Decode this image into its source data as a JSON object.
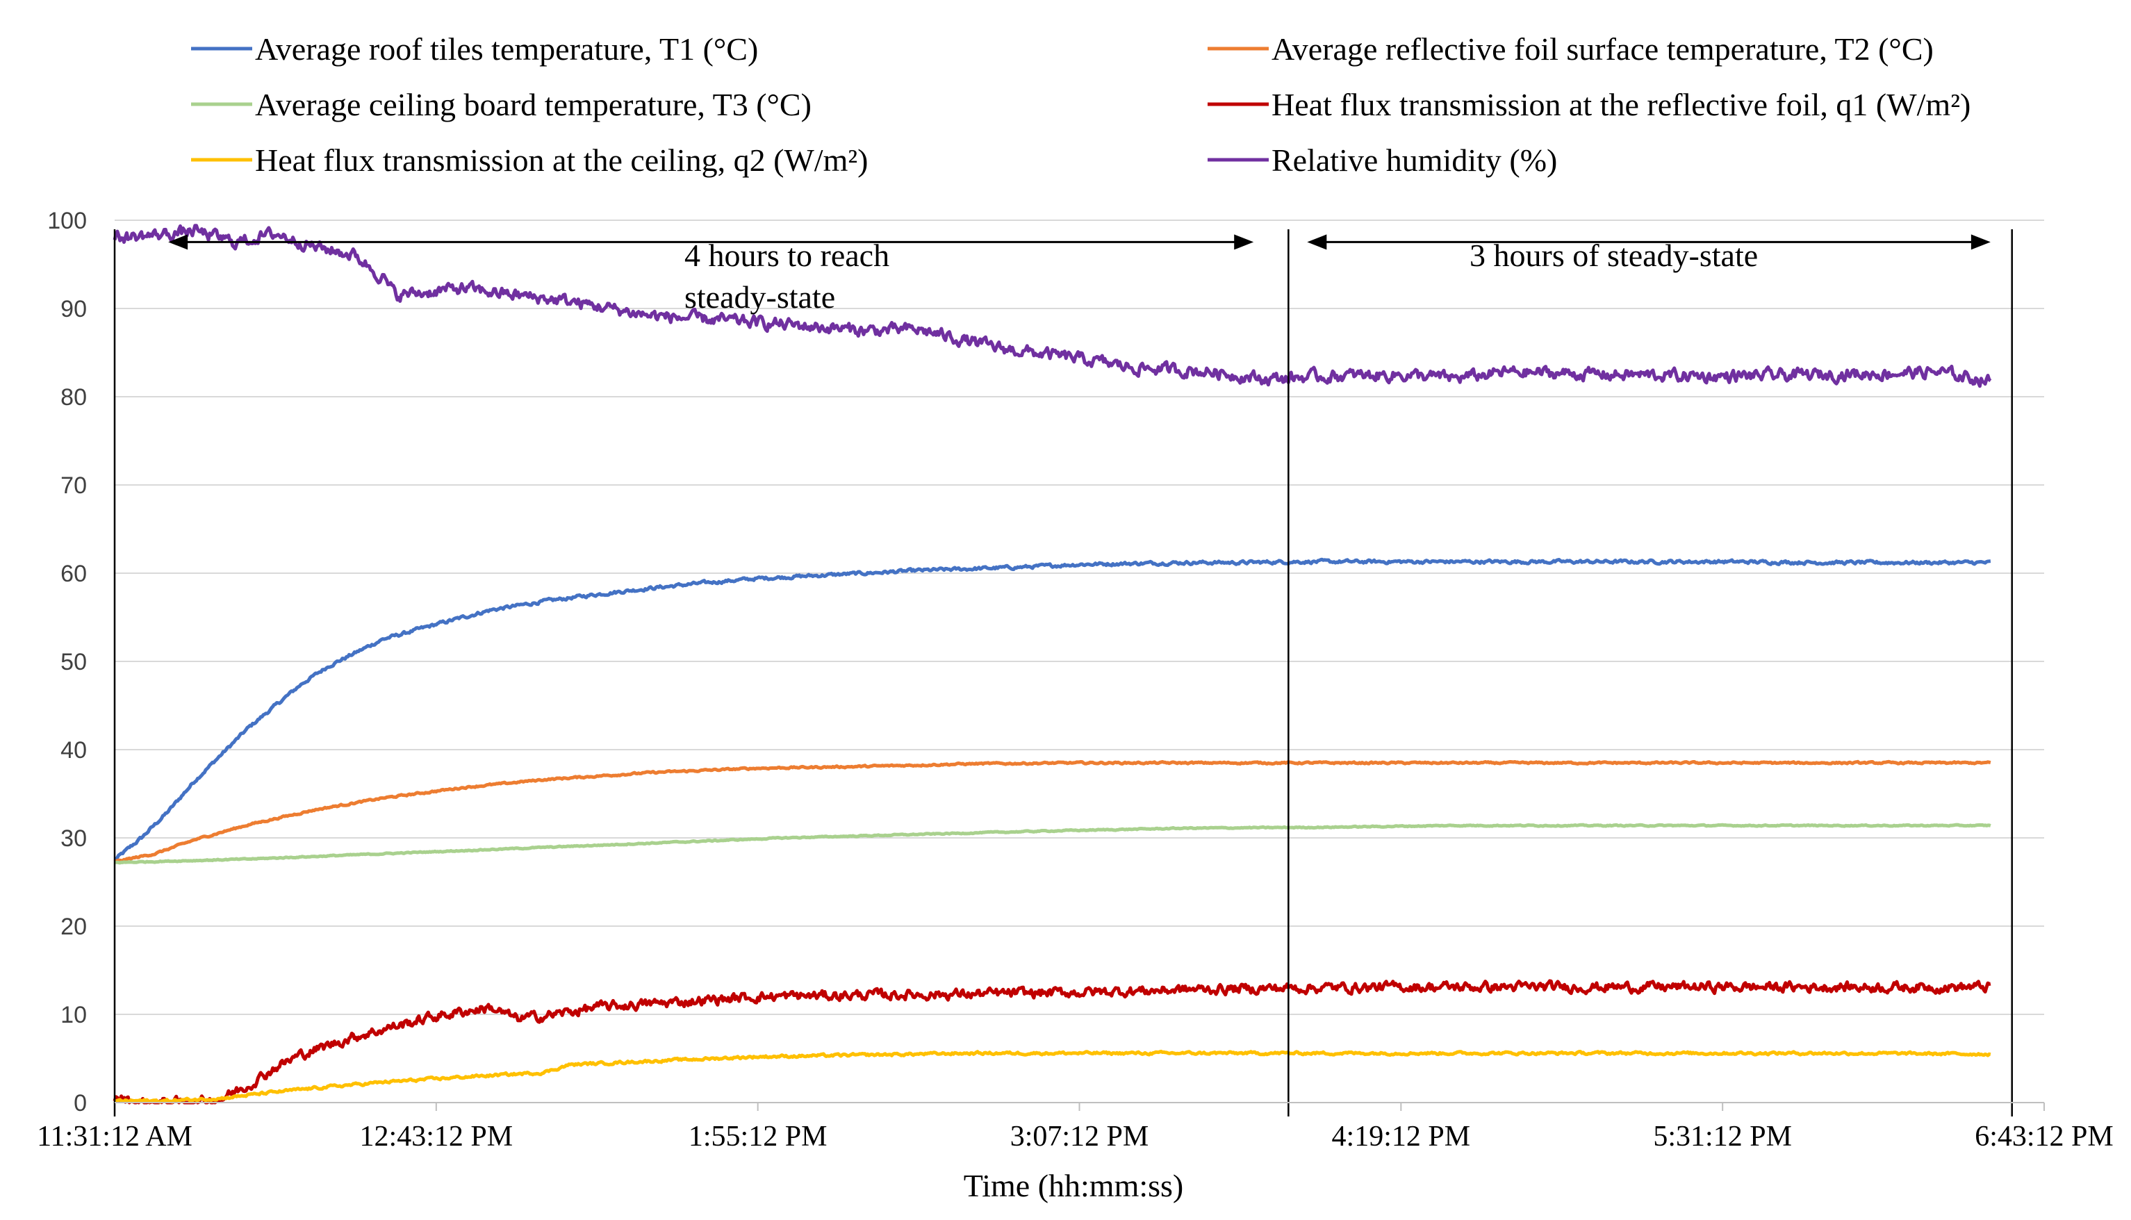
{
  "chart_data": {
    "type": "line",
    "title": "",
    "xlabel": "Time (hh:mm:ss)",
    "ylabel": "",
    "ylim": [
      0,
      100
    ],
    "yticks": [
      0,
      10,
      20,
      30,
      40,
      50,
      60,
      70,
      80,
      90,
      100
    ],
    "x_unit": "hours after 11:31:12 AM",
    "xlim": [
      0,
      7.2
    ],
    "xtick_labels": [
      "11:31:12 AM",
      "12:43:12 PM",
      "1:55:12 PM",
      "3:07:12 PM",
      "4:19:12 PM",
      "5:31:12 PM",
      "6:43:12 PM"
    ],
    "xtick_values": [
      0,
      1.2,
      2.4,
      3.6,
      4.8,
      6.0,
      7.2
    ],
    "legend_position": "top",
    "annotations": [
      {
        "text_lines": [
          "4 hours to reach",
          "steady-state"
        ],
        "x_from": 0.2,
        "x_to": 4.25,
        "y": 98
      },
      {
        "text_lines": [
          "3 hours of steady-state"
        ],
        "x_from": 4.45,
        "x_to": 7.0,
        "y": 98
      }
    ],
    "vertical_markers": [
      0,
      4.38,
      7.08
    ],
    "series": [
      {
        "name": "Average roof tiles temperature, T1 (°C)",
        "color": "#4472C4",
        "noise": 0.15,
        "x": [
          0,
          0.1,
          0.2,
          0.3,
          0.4,
          0.5,
          0.6,
          0.7,
          0.8,
          0.9,
          1.0,
          1.2,
          1.4,
          1.6,
          1.8,
          2.0,
          2.2,
          2.4,
          2.6,
          2.8,
          3.0,
          3.2,
          3.4,
          3.6,
          3.8,
          4.0,
          4.2,
          4.4,
          4.8,
          5.2,
          5.6,
          6.0,
          6.4,
          6.8,
          7.0
        ],
        "y": [
          27.5,
          30.0,
          33.0,
          36.5,
          39.5,
          42.5,
          45.0,
          47.5,
          49.5,
          51.0,
          52.5,
          54.2,
          55.8,
          56.8,
          57.6,
          58.3,
          58.9,
          59.4,
          59.7,
          60.0,
          60.3,
          60.5,
          60.7,
          61.0,
          61.1,
          61.2,
          61.2,
          61.3,
          61.3,
          61.3,
          61.3,
          61.3,
          61.2,
          61.2,
          61.2
        ]
      },
      {
        "name": "Average reflective foil surface temperature, T2 (°C)",
        "color": "#ED7D31",
        "noise": 0.08,
        "x": [
          0,
          0.15,
          0.3,
          0.5,
          0.75,
          1.0,
          1.3,
          1.6,
          2.0,
          2.4,
          2.8,
          3.2,
          3.6,
          4.0,
          4.4,
          5.0,
          5.6,
          6.2,
          7.0
        ],
        "y": [
          27.3,
          28.2,
          29.8,
          31.5,
          33.2,
          34.5,
          35.7,
          36.6,
          37.4,
          37.9,
          38.1,
          38.4,
          38.5,
          38.5,
          38.5,
          38.5,
          38.5,
          38.5,
          38.5
        ]
      },
      {
        "name": "Average ceiling board temperature, T3 (°C)",
        "color": "#A9D18E",
        "noise": 0.05,
        "x": [
          0,
          0.5,
          1.0,
          1.5,
          2.0,
          2.5,
          3.0,
          3.5,
          4.0,
          4.5,
          5.0,
          5.5,
          6.0,
          6.5,
          7.0
        ],
        "y": [
          27.2,
          27.6,
          28.2,
          28.8,
          29.4,
          30.0,
          30.4,
          30.8,
          31.1,
          31.2,
          31.4,
          31.4,
          31.4,
          31.4,
          31.4
        ]
      },
      {
        "name": "Heat flux transmission at the reflective foil, q1 (W/m²)",
        "color": "#C00000",
        "noise": 0.45,
        "x": [
          0,
          0.05,
          0.1,
          0.2,
          0.3,
          0.4,
          0.5,
          0.6,
          0.7,
          0.8,
          0.9,
          1.0,
          1.2,
          1.4,
          1.5,
          1.6,
          1.8,
          2.0,
          2.2,
          2.4,
          2.8,
          3.2,
          3.6,
          4.0,
          4.4,
          4.8,
          5.2,
          5.6,
          6.0,
          6.4,
          6.8,
          7.0
        ],
        "y": [
          0.5,
          0.3,
          0.0,
          0.0,
          0.0,
          0.5,
          2.0,
          4.0,
          5.5,
          6.5,
          7.5,
          8.3,
          9.8,
          10.8,
          9.5,
          9.8,
          10.8,
          11.2,
          11.6,
          12.0,
          12.2,
          12.3,
          12.5,
          12.8,
          13.0,
          13.1,
          13.1,
          13.1,
          13.1,
          13.1,
          13.1,
          13.1
        ]
      },
      {
        "name": "Heat flux transmission at the ceiling, q2 (W/m²)",
        "color": "#FFC000",
        "noise": 0.12,
        "x": [
          0,
          0.2,
          0.4,
          0.6,
          0.8,
          1.0,
          1.3,
          1.6,
          1.7,
          2.0,
          2.4,
          2.8,
          3.2,
          3.6,
          4.0,
          4.4,
          4.8,
          5.2,
          5.6,
          6.0,
          6.4,
          7.0
        ],
        "y": [
          0.2,
          0.2,
          0.5,
          1.2,
          1.8,
          2.3,
          2.9,
          3.4,
          4.3,
          4.7,
          5.2,
          5.4,
          5.6,
          5.6,
          5.6,
          5.6,
          5.6,
          5.6,
          5.6,
          5.6,
          5.6,
          5.5
        ]
      },
      {
        "name": "Relative humidity (%)",
        "color": "#7030A0",
        "noise": 0.55,
        "x": [
          0,
          0.15,
          0.3,
          0.45,
          0.6,
          0.75,
          0.9,
          1.0,
          1.05,
          1.15,
          1.3,
          1.5,
          1.7,
          2.0,
          2.2,
          2.5,
          2.8,
          3.0,
          3.3,
          3.6,
          3.8,
          4.1,
          4.3,
          4.5,
          4.8,
          5.0,
          5.2,
          5.6,
          6.0,
          6.4,
          6.8,
          7.0
        ],
        "y": [
          98.0,
          98.3,
          98.8,
          97.5,
          98.5,
          97.0,
          96.0,
          93.5,
          91.5,
          91.8,
          92.3,
          91.5,
          90.8,
          89.2,
          88.8,
          88.2,
          87.5,
          87.6,
          85.5,
          84.3,
          83.3,
          82.8,
          82.0,
          82.3,
          82.5,
          82.1,
          82.8,
          82.5,
          82.3,
          82.5,
          82.8,
          81.8
        ]
      }
    ]
  }
}
